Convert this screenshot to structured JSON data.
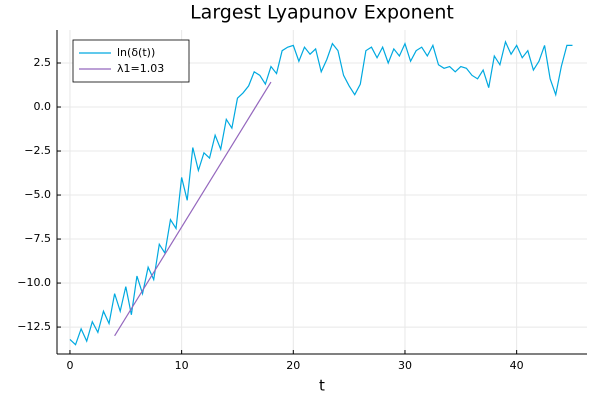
{
  "chart_data": {
    "type": "line",
    "title": "Largest Lyapunov Exponent",
    "x_label": "t",
    "xlim": [
      -1.16,
      46.3
    ],
    "ylim": [
      -14.03,
      4.375
    ],
    "xticks": [
      0,
      10,
      20,
      30,
      40
    ],
    "yticks": [
      2.5,
      {
        "value": 0,
        "label": "0.0"
      },
      {
        "value": -2.5,
        "label": "−2.5"
      },
      {
        "value": -5,
        "label": "−5.0"
      },
      {
        "value": -7.5,
        "label": "−7.5"
      },
      {
        "value": -10,
        "label": "−10.0"
      },
      {
        "value": -12.5,
        "label": "−12.5"
      }
    ],
    "grid": true,
    "legend": "top-left",
    "series": [
      {
        "name": "ln(δ(t))",
        "color": "#00a9e0",
        "x": [
          0,
          0.5,
          1,
          1.5,
          2,
          2.5,
          3,
          3.5,
          4,
          4.5,
          5,
          5.5,
          6,
          6.5,
          7,
          7.5,
          8,
          8.5,
          9,
          9.5,
          10,
          10.5,
          11,
          11.5,
          12,
          12.5,
          13,
          13.5,
          14,
          14.5,
          15,
          15.5,
          16,
          16.5,
          17,
          17.5,
          18,
          18.5,
          19,
          19.5,
          20,
          20.5,
          21,
          21.5,
          22,
          22.5,
          23,
          23.5,
          24,
          24.5,
          25,
          25.5,
          26,
          26.5,
          27,
          27.5,
          28,
          28.5,
          29,
          29.5,
          30,
          30.5,
          31,
          31.5,
          32,
          32.5,
          33,
          33.5,
          34,
          34.5,
          35,
          35.5,
          36,
          36.5,
          37,
          37.5,
          38,
          38.5,
          39,
          39.5,
          40,
          40.5,
          41,
          41.5,
          42,
          42.5,
          43,
          43.5,
          44,
          44.5,
          45
        ],
        "values": [
          -13.2,
          -13.5,
          -12.6,
          -13.3,
          -12.2,
          -12.8,
          -11.6,
          -12.3,
          -10.6,
          -11.6,
          -10.2,
          -11.8,
          -9.6,
          -10.6,
          -9.1,
          -9.8,
          -7.8,
          -8.3,
          -6.4,
          -6.9,
          -4.0,
          -5.3,
          -2.3,
          -3.6,
          -2.6,
          -2.9,
          -1.6,
          -2.4,
          -0.7,
          -1.2,
          0.5,
          0.8,
          1.2,
          2.0,
          1.8,
          1.3,
          2.3,
          1.9,
          3.2,
          3.4,
          3.5,
          2.6,
          3.4,
          3.0,
          3.3,
          2.0,
          2.7,
          3.6,
          3.2,
          1.8,
          1.2,
          0.7,
          1.3,
          3.2,
          3.4,
          2.8,
          3.4,
          2.5,
          3.3,
          2.9,
          3.6,
          2.6,
          3.2,
          3.4,
          2.9,
          3.5,
          2.4,
          2.2,
          2.3,
          2.0,
          2.3,
          2.2,
          1.8,
          1.6,
          2.1,
          1.1,
          2.9,
          2.4,
          3.7,
          3.0,
          3.5,
          2.8,
          3.2,
          2.1,
          2.6,
          3.5,
          1.6,
          0.7,
          2.3,
          3.5,
          3.5
        ]
      },
      {
        "name": "λ1=1.03",
        "color": "#9467bd",
        "x": [
          4,
          18
        ],
        "values": [
          -13,
          1.42
        ]
      }
    ]
  }
}
